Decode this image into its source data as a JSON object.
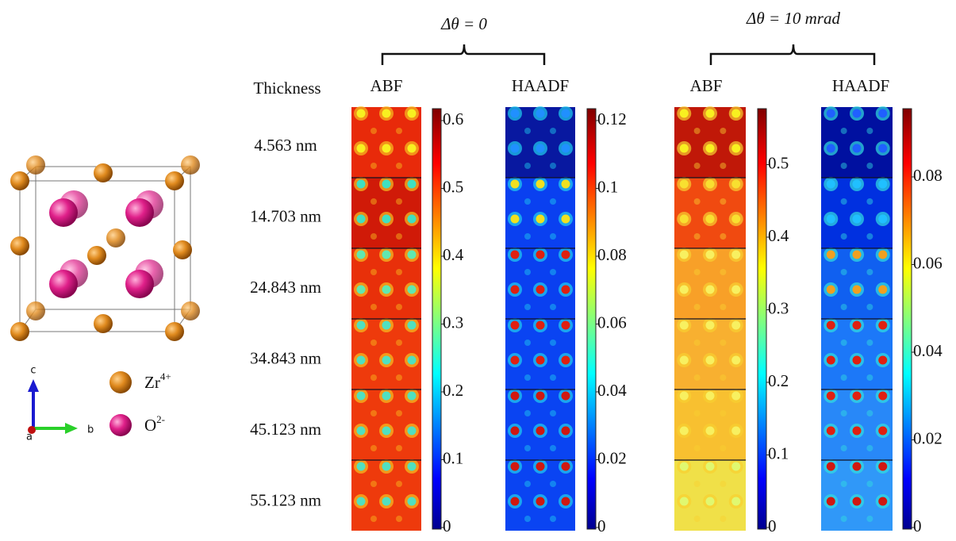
{
  "headers": [
    {
      "label": "Δθ = 0"
    },
    {
      "label": "Δθ = 10 mrad"
    }
  ],
  "thickness": {
    "title": "Thickness",
    "rows": [
      "4.563  nm",
      "14.703  nm",
      "24.843  nm",
      "34.843  nm",
      "45.123  nm",
      "55.123  nm"
    ]
  },
  "panels": [
    {
      "label": "ABF",
      "colorbar": [
        "0",
        "0.1",
        "0.2",
        "0.3",
        "0.4",
        "0.5",
        "0.6"
      ]
    },
    {
      "label": "HAADF",
      "colorbar": [
        "0",
        "0.02",
        "0.04",
        "0.06",
        "0.08",
        "0.1",
        "0.12"
      ]
    },
    {
      "label": "ABF",
      "colorbar": [
        "0",
        "0.1",
        "0.2",
        "0.3",
        "0.4",
        "0.5"
      ]
    },
    {
      "label": "HAADF",
      "colorbar": [
        "0",
        "0.02",
        "0.04",
        "0.06",
        "0.08"
      ]
    }
  ],
  "legend": [
    {
      "element": "Zr",
      "charge": "4+"
    },
    {
      "element": "O",
      "charge": "2-"
    }
  ],
  "axes": {
    "c": "c",
    "b": "b",
    "a": "a"
  }
}
